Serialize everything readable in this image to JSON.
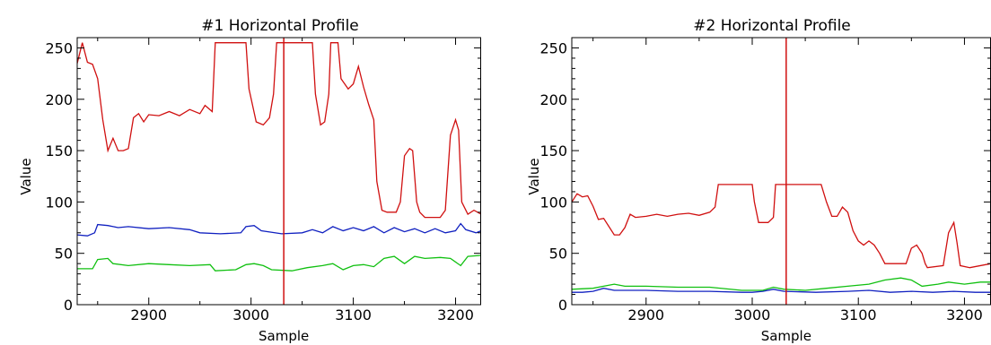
{
  "chart_data": [
    {
      "type": "line",
      "title": "#1 Horizontal Profile",
      "xlabel": "Sample",
      "ylabel": "Value",
      "xlim": [
        2830,
        3225
      ],
      "ylim": [
        0,
        260
      ],
      "xticks": [
        2900,
        3000,
        3100,
        3200
      ],
      "xtick_labels": [
        "2900",
        "3000",
        "3100",
        "3200"
      ],
      "yticks": [
        0,
        50,
        100,
        150,
        200,
        250
      ],
      "ytick_labels": [
        "0",
        "50",
        "100",
        "150",
        "200",
        "250"
      ],
      "marker_x": 3032,
      "marker_color": "#d01010",
      "series": [
        {
          "color": "#d01010",
          "points": [
            [
              2830,
              235
            ],
            [
              2835,
              255
            ],
            [
              2840,
              236
            ],
            [
              2845,
              234
            ],
            [
              2850,
              220
            ],
            [
              2855,
              180
            ],
            [
              2860,
              150
            ],
            [
              2865,
              162
            ],
            [
              2870,
              150
            ],
            [
              2875,
              150
            ],
            [
              2880,
              152
            ],
            [
              2885,
              182
            ],
            [
              2890,
              186
            ],
            [
              2895,
              178
            ],
            [
              2900,
              185
            ],
            [
              2910,
              184
            ],
            [
              2920,
              188
            ],
            [
              2930,
              184
            ],
            [
              2940,
              190
            ],
            [
              2950,
              186
            ],
            [
              2955,
              194
            ],
            [
              2962,
              188
            ],
            [
              2965,
              255
            ],
            [
              2995,
              255
            ],
            [
              2998,
              210
            ],
            [
              3005,
              178
            ],
            [
              3012,
              175
            ],
            [
              3018,
              182
            ],
            [
              3022,
              205
            ],
            [
              3025,
              255
            ],
            [
              3030,
              255
            ],
            [
              3060,
              255
            ],
            [
              3063,
              205
            ],
            [
              3068,
              175
            ],
            [
              3072,
              178
            ],
            [
              3076,
              205
            ],
            [
              3078,
              255
            ],
            [
              3085,
              255
            ],
            [
              3088,
              220
            ],
            [
              3095,
              210
            ],
            [
              3100,
              215
            ],
            [
              3105,
              232
            ],
            [
              3110,
              212
            ],
            [
              3115,
              195
            ],
            [
              3120,
              180
            ],
            [
              3123,
              120
            ],
            [
              3128,
              92
            ],
            [
              3133,
              90
            ],
            [
              3142,
              90
            ],
            [
              3146,
              100
            ],
            [
              3150,
              145
            ],
            [
              3155,
              152
            ],
            [
              3158,
              150
            ],
            [
              3162,
              100
            ],
            [
              3165,
              90
            ],
            [
              3170,
              85
            ],
            [
              3185,
              85
            ],
            [
              3190,
              92
            ],
            [
              3195,
              165
            ],
            [
              3200,
              180
            ],
            [
              3203,
              170
            ],
            [
              3206,
              100
            ],
            [
              3212,
              88
            ],
            [
              3218,
              92
            ],
            [
              3225,
              88
            ]
          ]
        },
        {
          "color": "#1020c0",
          "points": [
            [
              2830,
              68
            ],
            [
              2840,
              67
            ],
            [
              2847,
              70
            ],
            [
              2850,
              78
            ],
            [
              2860,
              77
            ],
            [
              2870,
              75
            ],
            [
              2880,
              76
            ],
            [
              2900,
              74
            ],
            [
              2920,
              75
            ],
            [
              2940,
              73
            ],
            [
              2950,
              70
            ],
            [
              2970,
              69
            ],
            [
              2990,
              70
            ],
            [
              2995,
              76
            ],
            [
              3003,
              77
            ],
            [
              3010,
              72
            ],
            [
              3030,
              69
            ],
            [
              3050,
              70
            ],
            [
              3060,
              73
            ],
            [
              3070,
              70
            ],
            [
              3080,
              76
            ],
            [
              3090,
              72
            ],
            [
              3100,
              75
            ],
            [
              3110,
              72
            ],
            [
              3120,
              76
            ],
            [
              3130,
              70
            ],
            [
              3140,
              75
            ],
            [
              3150,
              71
            ],
            [
              3160,
              74
            ],
            [
              3170,
              70
            ],
            [
              3180,
              74
            ],
            [
              3190,
              70
            ],
            [
              3200,
              72
            ],
            [
              3205,
              79
            ],
            [
              3210,
              73
            ],
            [
              3220,
              70
            ],
            [
              3225,
              72
            ]
          ]
        },
        {
          "color": "#10c010",
          "points": [
            [
              2830,
              35
            ],
            [
              2845,
              35
            ],
            [
              2850,
              44
            ],
            [
              2860,
              45
            ],
            [
              2865,
              40
            ],
            [
              2880,
              38
            ],
            [
              2900,
              40
            ],
            [
              2920,
              39
            ],
            [
              2940,
              38
            ],
            [
              2960,
              39
            ],
            [
              2965,
              33
            ],
            [
              2985,
              34
            ],
            [
              2995,
              39
            ],
            [
              3003,
              40
            ],
            [
              3012,
              38
            ],
            [
              3020,
              34
            ],
            [
              3040,
              33
            ],
            [
              3055,
              36
            ],
            [
              3070,
              38
            ],
            [
              3080,
              40
            ],
            [
              3090,
              34
            ],
            [
              3100,
              38
            ],
            [
              3110,
              39
            ],
            [
              3120,
              37
            ],
            [
              3130,
              45
            ],
            [
              3140,
              47
            ],
            [
              3150,
              40
            ],
            [
              3160,
              47
            ],
            [
              3170,
              45
            ],
            [
              3185,
              46
            ],
            [
              3195,
              45
            ],
            [
              3205,
              38
            ],
            [
              3212,
              47
            ],
            [
              3225,
              48
            ]
          ]
        }
      ]
    },
    {
      "type": "line",
      "title": "#2 Horizontal Profile",
      "xlabel": "Sample",
      "ylabel": "Value",
      "xlim": [
        2830,
        3225
      ],
      "ylim": [
        0,
        260
      ],
      "xticks": [
        2900,
        3000,
        3100,
        3200
      ],
      "xtick_labels": [
        "2900",
        "3000",
        "3100",
        "3200"
      ],
      "yticks": [
        0,
        50,
        100,
        150,
        200,
        250
      ],
      "ytick_labels": [
        "0",
        "50",
        "100",
        "150",
        "200",
        "250"
      ],
      "marker_x": 3032,
      "marker_color": "#d01010",
      "series": [
        {
          "color": "#d01010",
          "points": [
            [
              2830,
              100
            ],
            [
              2835,
              108
            ],
            [
              2840,
              105
            ],
            [
              2845,
              106
            ],
            [
              2850,
              96
            ],
            [
              2855,
              83
            ],
            [
              2860,
              84
            ],
            [
              2865,
              76
            ],
            [
              2870,
              68
            ],
            [
              2875,
              68
            ],
            [
              2880,
              75
            ],
            [
              2885,
              88
            ],
            [
              2890,
              85
            ],
            [
              2900,
              86
            ],
            [
              2910,
              88
            ],
            [
              2920,
              86
            ],
            [
              2930,
              88
            ],
            [
              2940,
              89
            ],
            [
              2950,
              87
            ],
            [
              2960,
              90
            ],
            [
              2965,
              95
            ],
            [
              2968,
              117
            ],
            [
              3000,
              117
            ],
            [
              3002,
              100
            ],
            [
              3006,
              80
            ],
            [
              3015,
              80
            ],
            [
              3020,
              85
            ],
            [
              3022,
              117
            ],
            [
              3065,
              117
            ],
            [
              3070,
              100
            ],
            [
              3075,
              86
            ],
            [
              3080,
              86
            ],
            [
              3085,
              95
            ],
            [
              3090,
              90
            ],
            [
              3095,
              72
            ],
            [
              3100,
              62
            ],
            [
              3105,
              58
            ],
            [
              3110,
              62
            ],
            [
              3115,
              58
            ],
            [
              3120,
              50
            ],
            [
              3125,
              40
            ],
            [
              3145,
              40
            ],
            [
              3150,
              55
            ],
            [
              3155,
              58
            ],
            [
              3160,
              50
            ],
            [
              3163,
              40
            ],
            [
              3165,
              36
            ],
            [
              3180,
              38
            ],
            [
              3185,
              70
            ],
            [
              3190,
              80
            ],
            [
              3193,
              60
            ],
            [
              3196,
              38
            ],
            [
              3205,
              36
            ],
            [
              3225,
              40
            ]
          ]
        },
        {
          "color": "#1020c0",
          "points": [
            [
              2830,
              12
            ],
            [
              2840,
              12
            ],
            [
              2850,
              13
            ],
            [
              2860,
              16
            ],
            [
              2870,
              14
            ],
            [
              2900,
              14
            ],
            [
              2930,
              13
            ],
            [
              2960,
              13
            ],
            [
              2990,
              12
            ],
            [
              3000,
              12
            ],
            [
              3010,
              13
            ],
            [
              3020,
              15
            ],
            [
              3030,
              13
            ],
            [
              3060,
              12
            ],
            [
              3090,
              13
            ],
            [
              3110,
              14
            ],
            [
              3130,
              12
            ],
            [
              3150,
              13
            ],
            [
              3170,
              12
            ],
            [
              3190,
              13
            ],
            [
              3210,
              12
            ],
            [
              3225,
              12
            ]
          ]
        },
        {
          "color": "#10c010",
          "points": [
            [
              2830,
              15
            ],
            [
              2850,
              16
            ],
            [
              2860,
              18
            ],
            [
              2870,
              20
            ],
            [
              2880,
              18
            ],
            [
              2900,
              18
            ],
            [
              2930,
              17
            ],
            [
              2960,
              17
            ],
            [
              2990,
              14
            ],
            [
              3010,
              14
            ],
            [
              3020,
              17
            ],
            [
              3030,
              15
            ],
            [
              3050,
              14
            ],
            [
              3070,
              16
            ],
            [
              3090,
              18
            ],
            [
              3110,
              20
            ],
            [
              3125,
              24
            ],
            [
              3140,
              26
            ],
            [
              3150,
              24
            ],
            [
              3160,
              18
            ],
            [
              3175,
              20
            ],
            [
              3185,
              22
            ],
            [
              3200,
              20
            ],
            [
              3215,
              22
            ],
            [
              3225,
              22
            ]
          ]
        }
      ]
    }
  ]
}
